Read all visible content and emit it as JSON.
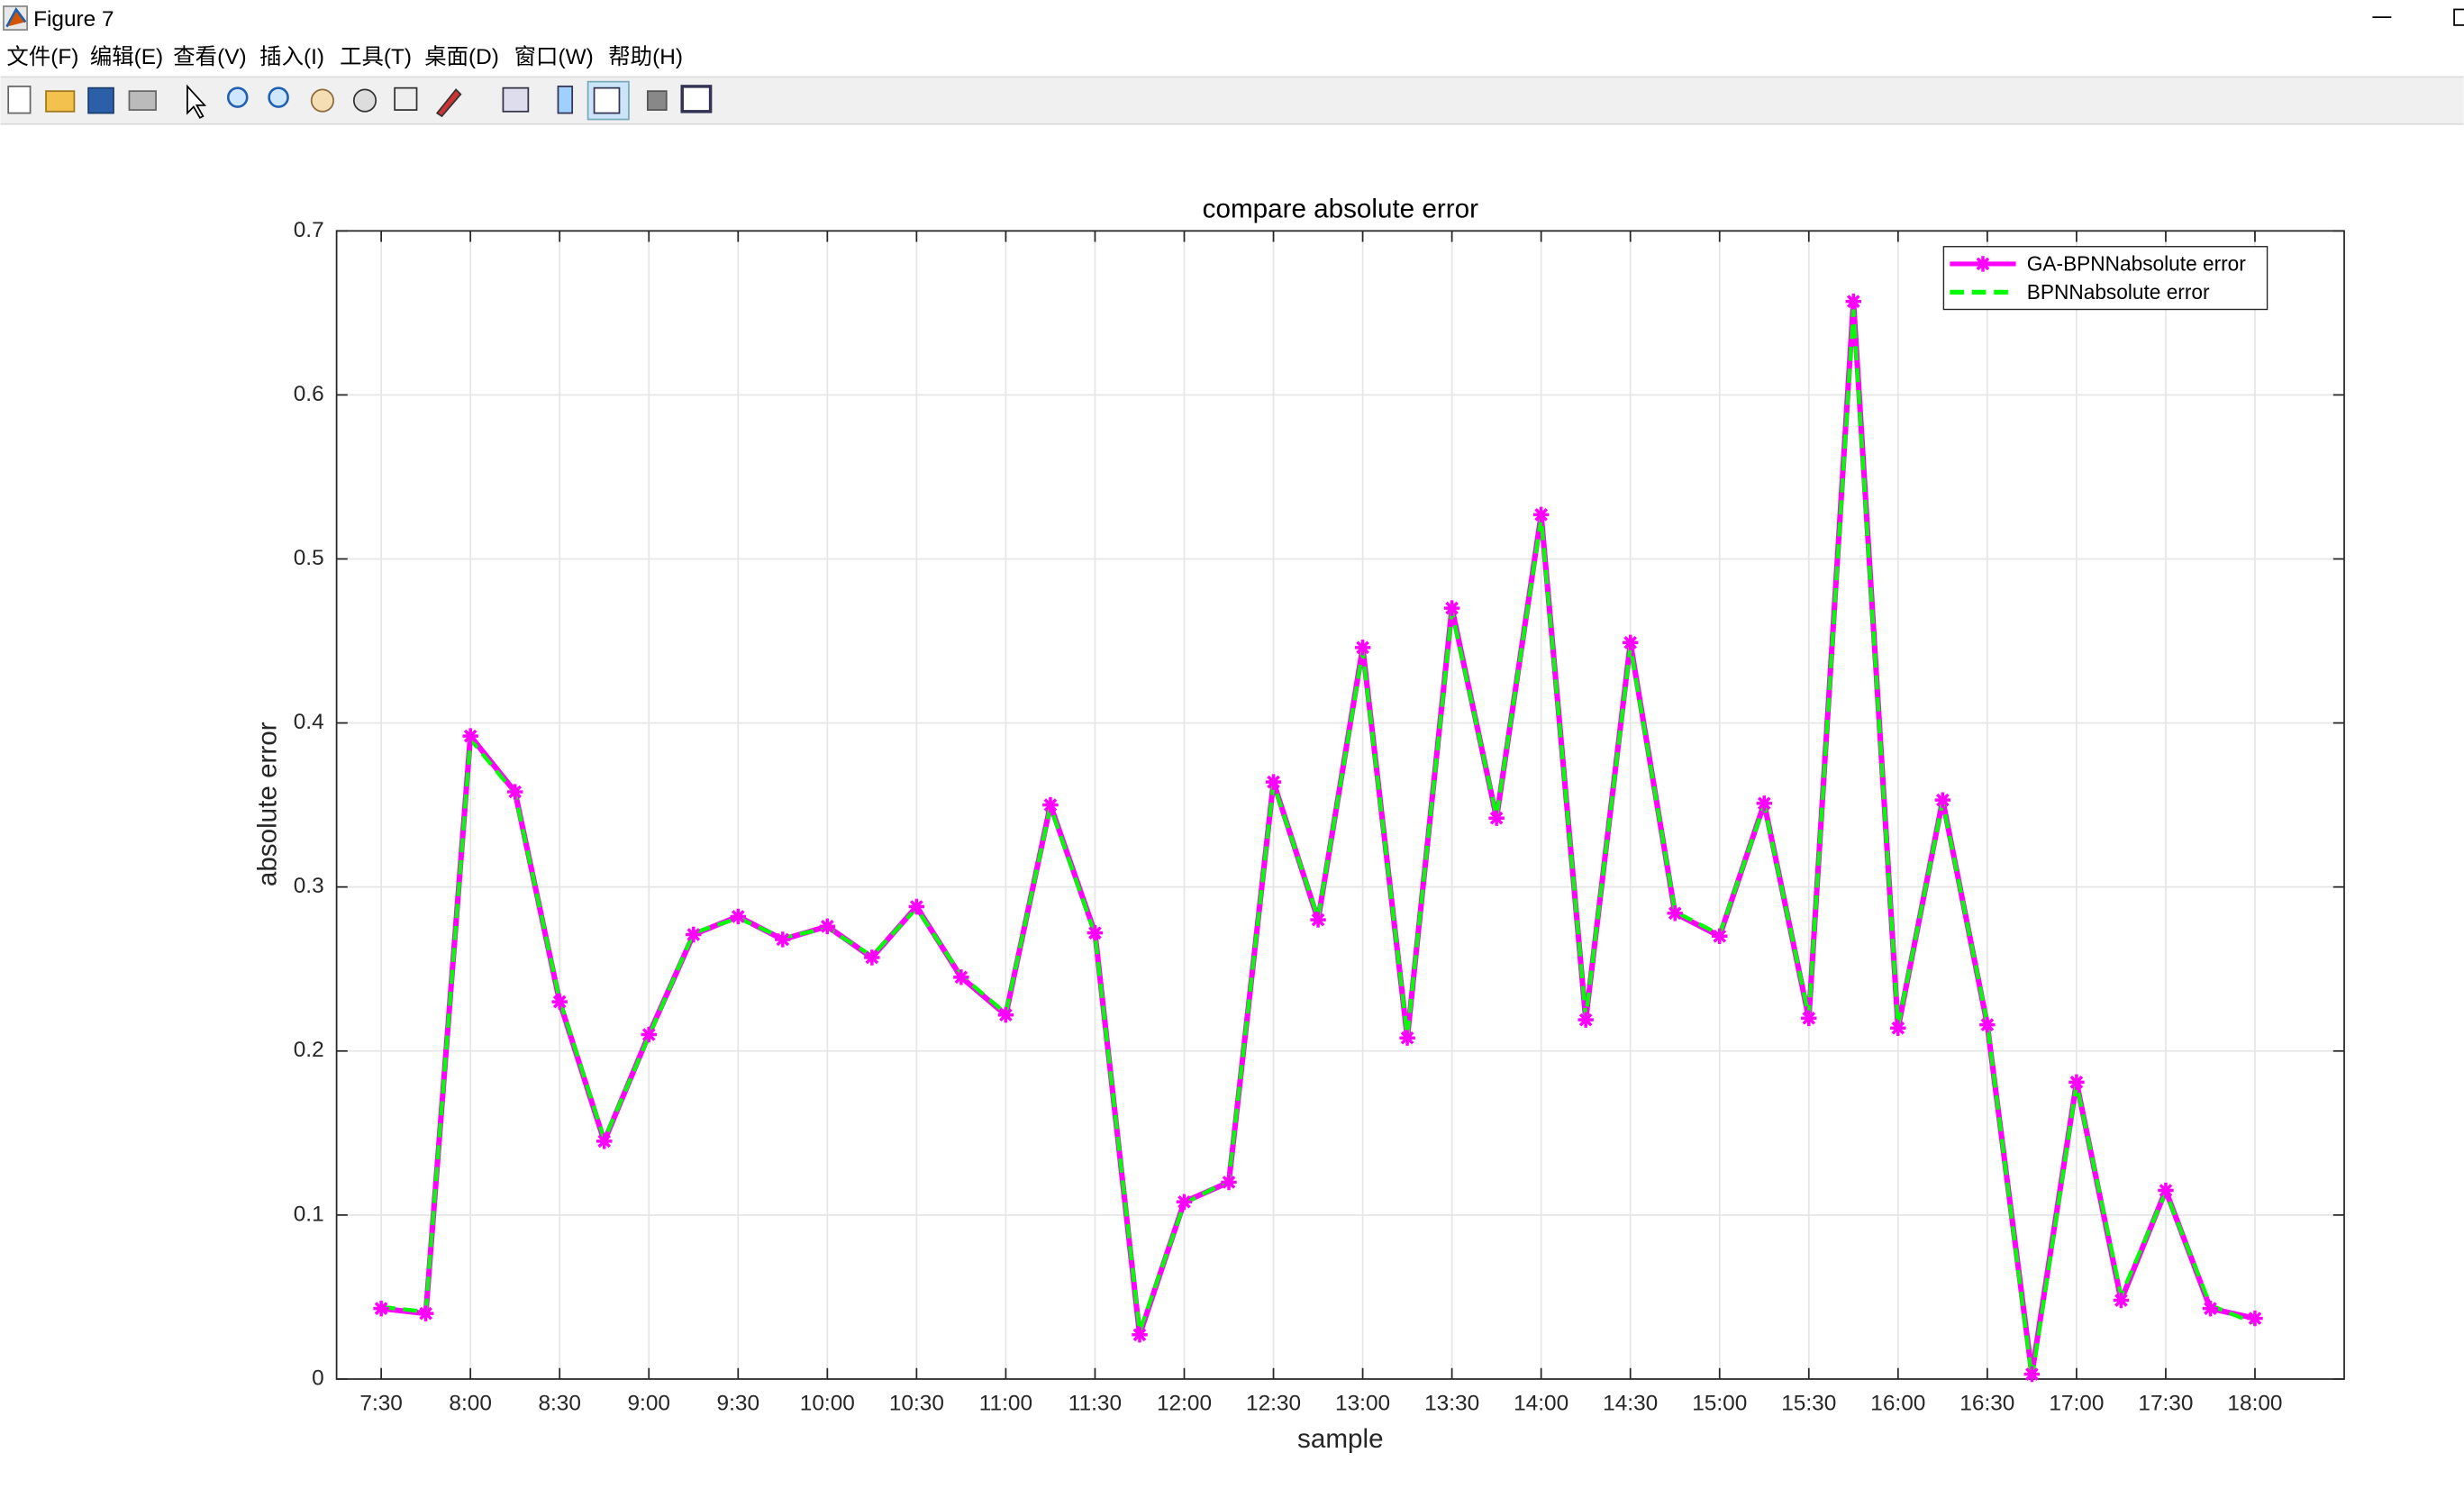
{
  "window": {
    "title": "Figure 7",
    "menu": [
      "文件(F)",
      "编辑(E)",
      "查看(V)",
      "插入(I)",
      "工具(T)",
      "桌面(D)",
      "窗口(W)",
      "帮助(H)"
    ]
  },
  "chart_data": {
    "type": "line",
    "title": "compare absolute error",
    "xlabel": "sample",
    "ylabel": "absolute error",
    "categories": [
      "7:30",
      null,
      "8:00",
      null,
      "8:30",
      null,
      "9:00",
      null,
      "9:30",
      null,
      "10:00",
      null,
      "10:30",
      null,
      "11:00",
      null,
      "11:30",
      null,
      "12:00",
      null,
      "12:30",
      null,
      "13:00",
      null,
      "13:30",
      null,
      "14:00",
      null,
      "14:30",
      null,
      "15:00",
      null,
      "15:30",
      null,
      "16:00",
      null,
      "16:30",
      null,
      "17:00",
      null,
      "17:30",
      null,
      "18:00"
    ],
    "ylim": [
      0,
      0.7
    ],
    "yticks": [
      0,
      0.1,
      0.2,
      0.3,
      0.4,
      0.5,
      0.6,
      0.7
    ],
    "grid": true,
    "legend": "upper right",
    "series": [
      {
        "name": "GA-BPNNabsolute error",
        "color": "#ff00ff",
        "linestyle": "solid",
        "marker": "*",
        "values": [
          0.043,
          0.04,
          0.392,
          0.358,
          0.23,
          0.145,
          0.21,
          0.271,
          0.282,
          0.268,
          0.276,
          0.257,
          0.288,
          0.245,
          0.222,
          0.35,
          0.272,
          0.027,
          0.108,
          0.12,
          0.364,
          0.28,
          0.446,
          0.208,
          0.47,
          0.342,
          0.527,
          0.219,
          0.449,
          0.284,
          0.27,
          0.351,
          0.22,
          0.657,
          0.214,
          0.353,
          0.216,
          0.003,
          0.181,
          0.048,
          0.115,
          0.043,
          0.037
        ]
      },
      {
        "name": "BPNNabsolute error",
        "color": "#00ff00",
        "linestyle": "dashed",
        "values": [
          0.044,
          0.041,
          0.39,
          0.357,
          0.231,
          0.146,
          0.209,
          0.272,
          0.281,
          0.269,
          0.275,
          0.258,
          0.287,
          0.246,
          0.223,
          0.349,
          0.271,
          0.029,
          0.107,
          0.121,
          0.363,
          0.281,
          0.444,
          0.209,
          0.468,
          0.343,
          0.525,
          0.22,
          0.447,
          0.285,
          0.271,
          0.35,
          0.221,
          0.652,
          0.215,
          0.352,
          0.217,
          0.0,
          0.18,
          0.051,
          0.114,
          0.045,
          0.034
        ]
      }
    ]
  }
}
